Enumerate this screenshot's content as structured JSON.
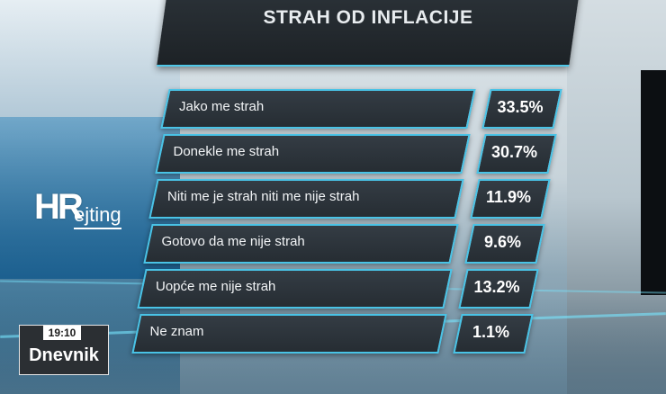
{
  "title": "STRAH OD INFLACIJE",
  "logo": {
    "hr": "HR",
    "rejting": "ejting"
  },
  "broadcast": {
    "time": "19:10",
    "show": "Dnevnik"
  },
  "colors": {
    "accent": "#49c3e6",
    "panel": "#2a3137",
    "text": "#ffffff"
  },
  "chart_data": {
    "type": "bar",
    "title": "STRAH OD INFLACIJE",
    "categories": [
      "Jako me strah",
      "Donekle me strah",
      "Niti me je strah niti me nije strah",
      "Gotovo da me nije strah",
      "Uopće me nije strah",
      "Ne znam"
    ],
    "values": [
      33.5,
      30.7,
      11.9,
      9.6,
      13.2,
      1.1
    ],
    "value_labels": [
      "33.5%",
      "30.7%",
      "11.9%",
      "9.6%",
      "13.2%",
      "1.1%"
    ],
    "unit": "%"
  }
}
